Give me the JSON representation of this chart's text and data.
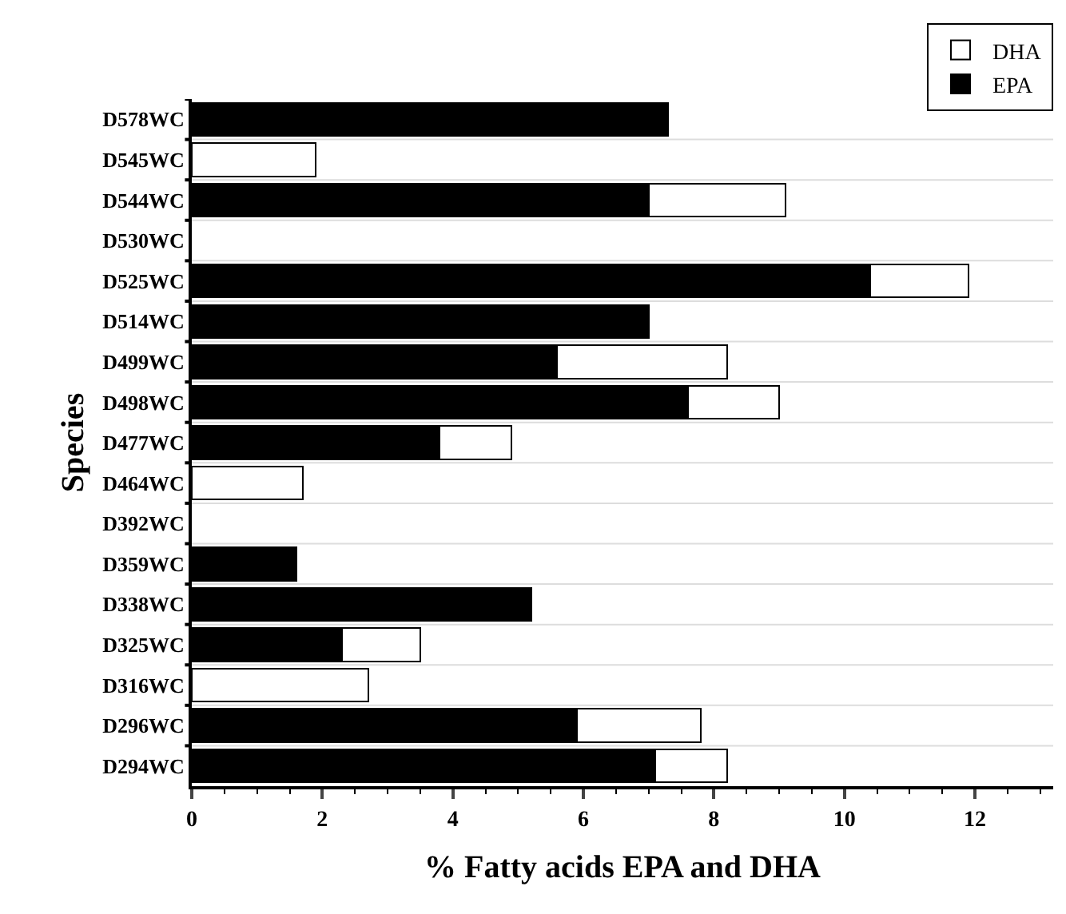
{
  "chart_data": {
    "type": "bar",
    "orientation": "horizontal",
    "stacked": true,
    "xlabel": "% Fatty acids EPA and DHA",
    "ylabel": "Species",
    "categories": [
      "D578WC",
      "D545WC",
      "D544WC",
      "D530WC",
      "D525WC",
      "D514WC",
      "D499WC",
      "D498WC",
      "D477WC",
      "D464WC",
      "D392WC",
      "D359WC",
      "D338WC",
      "D325WC",
      "D316WC",
      "D296WC",
      "D294WC"
    ],
    "series": [
      {
        "name": "EPA",
        "color": "#000000",
        "values": [
          7.3,
          null,
          7.0,
          null,
          10.4,
          7.0,
          5.6,
          7.6,
          3.8,
          null,
          null,
          1.6,
          5.2,
          2.3,
          null,
          5.9,
          7.1
        ]
      },
      {
        "name": "DHA",
        "color": "#ffffff",
        "values": [
          null,
          1.9,
          2.1,
          null,
          1.5,
          null,
          2.6,
          1.4,
          1.1,
          1.7,
          null,
          null,
          null,
          1.2,
          2.7,
          1.9,
          1.1
        ]
      }
    ],
    "xlim": [
      0,
      13.2
    ],
    "xticks": [
      0,
      2,
      4,
      6,
      8,
      10,
      12
    ],
    "grid": "y",
    "legend": "top right"
  }
}
